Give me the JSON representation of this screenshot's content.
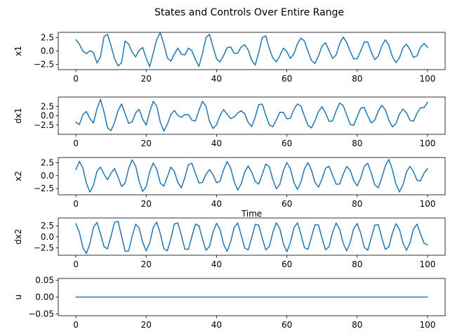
{
  "chart_data": {
    "title": "States and Controls Over Entire Range",
    "x_tick_labels": [
      "0",
      "20",
      "40",
      "60",
      "80",
      "100"
    ],
    "subplots": [
      {
        "type": "line",
        "ylabel": "x1",
        "xlabel": "",
        "xlim": [
          -5,
          105
        ],
        "ylim": [
          -3.5,
          3.5
        ],
        "yticks": [
          2.5,
          0.0,
          -2.5
        ],
        "ytick_labels": [
          "2.5",
          "0.0",
          "−2.5"
        ],
        "color": "#1f77b4",
        "x": [
          0,
          1,
          2,
          3,
          4,
          5,
          6,
          7,
          8,
          9,
          10,
          11,
          12,
          13,
          14,
          15,
          16,
          17,
          18,
          19,
          20,
          21,
          22,
          23,
          24,
          25,
          26,
          27,
          28,
          29,
          30,
          31,
          32,
          33,
          34,
          35,
          36,
          37,
          38,
          39,
          40,
          41,
          42,
          43,
          44,
          45,
          46,
          47,
          48,
          49,
          50,
          51,
          52,
          53,
          54,
          55,
          56,
          57,
          58,
          59,
          60,
          61,
          62,
          63,
          64,
          65,
          66,
          67,
          68,
          69,
          70,
          71,
          72,
          73,
          74,
          75,
          76,
          77,
          78,
          79,
          80,
          81,
          82,
          83,
          84,
          85,
          86,
          87,
          88,
          89,
          90,
          91,
          92,
          93,
          94,
          95,
          96,
          97,
          98,
          99,
          100
        ],
        "y": [
          2.12,
          1.28,
          -0.02,
          -0.5,
          0.05,
          -0.29,
          -2.26,
          -1.09,
          2.67,
          3.14,
          0.98,
          -1.43,
          -2.82,
          -2.18,
          1.88,
          1.33,
          -0.21,
          -1.12,
          0.12,
          0.66,
          -1.38,
          -2.97,
          -0.41,
          2.15,
          3.45,
          1.33,
          -1.27,
          -1.93,
          -0.57,
          0.55,
          -0.61,
          -0.75,
          0.54,
          0.04,
          -1.63,
          -2.9,
          -0.47,
          2.49,
          3.13,
          0.77,
          -1.48,
          -2.05,
          -0.87,
          0.62,
          0.78,
          -0.45,
          -0.41,
          0.76,
          1.16,
          0.18,
          -1.77,
          -2.63,
          -0.26,
          2.53,
          2.84,
          0.47,
          -1.32,
          -2.05,
          -0.92,
          0.52,
          -0.12,
          -1.4,
          -0.53,
          1.33,
          2.42,
          1.86,
          -0.08,
          -1.78,
          -2.36,
          -0.91,
          0.93,
          1.55,
          0.08,
          -1.42,
          -0.74,
          1.37,
          2.62,
          1.62,
          -0.11,
          -1.48,
          -1.46,
          0.02,
          1.66,
          1.66,
          -0.2,
          -1.61,
          -0.96,
          0.95,
          2.1,
          1.06,
          -1.05,
          -2.2,
          -1.3,
          0.59,
          1.28,
          0.24,
          -1.22,
          -0.92,
          0.7,
          1.4,
          0.72
        ]
      },
      {
        "type": "line",
        "ylabel": "dx1",
        "xlabel": "",
        "xlim": [
          -5,
          105
        ],
        "ylim": [
          -5.0,
          5.0
        ],
        "yticks": [
          2.5,
          0.0,
          -2.5
        ],
        "ytick_labels": [
          "2.5",
          "0.0",
          "−2.5"
        ],
        "color": "#1f77b4",
        "x": [
          0,
          1,
          2,
          3,
          4,
          5,
          6,
          7,
          8,
          9,
          10,
          11,
          12,
          13,
          14,
          15,
          16,
          17,
          18,
          19,
          20,
          21,
          22,
          23,
          24,
          25,
          26,
          27,
          28,
          29,
          30,
          31,
          32,
          33,
          34,
          35,
          36,
          37,
          38,
          39,
          40,
          41,
          42,
          43,
          44,
          45,
          46,
          47,
          48,
          49,
          50,
          51,
          52,
          53,
          54,
          55,
          56,
          57,
          58,
          59,
          60,
          61,
          62,
          63,
          64,
          65,
          66,
          67,
          68,
          69,
          70,
          71,
          72,
          73,
          74,
          75,
          76,
          77,
          78,
          79,
          80,
          81,
          82,
          83,
          84,
          85,
          86,
          87,
          88,
          89,
          90,
          91,
          92,
          93,
          94,
          95,
          96,
          97,
          98,
          99,
          100
        ],
        "y": [
          -1.78,
          -2.37,
          0.24,
          1.15,
          -0.76,
          -1.97,
          1.83,
          4.38,
          1.02,
          -3.25,
          -4.01,
          -1.79,
          1.37,
          3.16,
          0.59,
          -2.05,
          -1.66,
          0.76,
          1.68,
          -0.94,
          -2.54,
          1.04,
          3.86,
          2.54,
          -1.72,
          -4.12,
          -2.34,
          0.3,
          1.37,
          0.07,
          -0.46,
          0.31,
          0.28,
          -1.23,
          -1.45,
          1.45,
          3.85,
          2.57,
          -1.55,
          -3.43,
          -2.48,
          0.09,
          1.64,
          0.39,
          -0.79,
          -0.37,
          0.7,
          1.31,
          0.54,
          -1.81,
          -2.91,
          -0.38,
          2.97,
          3.09,
          0.16,
          -2.46,
          -2.96,
          -1.14,
          0.91,
          0.86,
          -0.84,
          -0.68,
          1.7,
          3.16,
          2.54,
          -0.13,
          -2.62,
          -3.28,
          -1.34,
          1.11,
          2.41,
          0.72,
          -1.56,
          -1.38,
          1.26,
          3.37,
          2.73,
          0.24,
          -2.33,
          -2.61,
          -0.25,
          2.01,
          2.21,
          -0.03,
          -1.96,
          -1.19,
          1.31,
          2.75,
          1.56,
          -1.21,
          -3.03,
          -2.14,
          0.4,
          1.77,
          0.79,
          -1.26,
          -1.48,
          0.62,
          2.17,
          2.13,
          3.6
        ]
      },
      {
        "type": "line",
        "ylabel": "x2",
        "xlabel": "Time",
        "xlim": [
          -5,
          105
        ],
        "ylim": [
          -3.7,
          3.5
        ],
        "yticks": [
          2.5,
          0.0,
          -2.5
        ],
        "ytick_labels": [
          "2.5",
          "0.0",
          "−2.5"
        ],
        "color": "#1f77b4",
        "x": [
          0,
          1,
          2,
          3,
          4,
          5,
          6,
          7,
          8,
          9,
          10,
          11,
          12,
          13,
          14,
          15,
          16,
          17,
          18,
          19,
          20,
          21,
          22,
          23,
          24,
          25,
          26,
          27,
          28,
          29,
          30,
          31,
          32,
          33,
          34,
          35,
          36,
          37,
          38,
          39,
          40,
          41,
          42,
          43,
          44,
          45,
          46,
          47,
          48,
          49,
          50,
          51,
          52,
          53,
          54,
          55,
          56,
          57,
          58,
          59,
          60,
          61,
          62,
          63,
          64,
          65,
          66,
          67,
          68,
          69,
          70,
          71,
          72,
          73,
          74,
          75,
          76,
          77,
          78,
          79,
          80,
          81,
          82,
          83,
          84,
          85,
          86,
          87,
          88,
          89,
          90,
          91,
          92,
          93,
          94,
          95,
          96,
          97,
          98,
          99,
          100
        ],
        "y": [
          1.12,
          2.77,
          1.44,
          -1.47,
          -3.18,
          -1.88,
          0.83,
          1.64,
          0.28,
          -0.8,
          0.47,
          1.38,
          -0.28,
          -2.11,
          -1.45,
          1.37,
          3.05,
          1.85,
          -1.1,
          -3.05,
          -2.12,
          0.75,
          2.44,
          1.24,
          -1.42,
          -2.05,
          -0.25,
          1.65,
          0.8,
          -1.32,
          -2.37,
          -0.34,
          2.1,
          2.4,
          0.44,
          -1.41,
          -1.32,
          0.27,
          1.18,
          0.2,
          -1.37,
          -1.08,
          1.1,
          2.73,
          1.49,
          -1.12,
          -2.77,
          -1.65,
          0.7,
          1.88,
          0.72,
          -1.14,
          -1.62,
          0.25,
          2.25,
          1.74,
          -0.76,
          -2.53,
          -1.69,
          0.98,
          2.51,
          1.31,
          -1.33,
          -2.67,
          -1.25,
          1.32,
          2.51,
          1.03,
          -1.31,
          -2.23,
          -0.65,
          1.45,
          1.79,
          0.07,
          -1.64,
          -1.63,
          0.23,
          1.76,
          1.05,
          -0.97,
          -1.98,
          -0.46,
          1.79,
          2.38,
          0.46,
          -1.79,
          -2.36,
          -0.37,
          1.9,
          3.12,
          1.15,
          -1.61,
          -3.15,
          -1.79,
          0.69,
          1.79,
          0.75,
          -0.88,
          -1.02,
          0.48,
          1.36
        ]
      },
      {
        "type": "line",
        "ylabel": "dx2",
        "xlabel": "",
        "xlim": [
          -5,
          105
        ],
        "ylim": [
          -4.2,
          4.3
        ],
        "yticks": [
          2.5,
          0.0,
          -2.5
        ],
        "ytick_labels": [
          "2.5",
          "0.0",
          "−2.5"
        ],
        "color": "#1f77b4",
        "x": [
          0,
          1,
          2,
          3,
          4,
          5,
          6,
          7,
          8,
          9,
          10,
          11,
          12,
          13,
          14,
          15,
          16,
          17,
          18,
          19,
          20,
          21,
          22,
          23,
          24,
          25,
          26,
          27,
          28,
          29,
          30,
          31,
          32,
          33,
          34,
          35,
          36,
          37,
          38,
          39,
          40,
          41,
          42,
          43,
          44,
          45,
          46,
          47,
          48,
          49,
          50,
          51,
          52,
          53,
          54,
          55,
          56,
          57,
          58,
          59,
          60,
          61,
          62,
          63,
          64,
          65,
          66,
          67,
          68,
          69,
          70,
          71,
          72,
          73,
          74,
          75,
          76,
          77,
          78,
          79,
          80,
          81,
          82,
          83,
          84,
          85,
          86,
          87,
          88,
          89,
          90,
          91,
          92,
          93,
          94,
          95,
          96,
          97,
          98,
          99,
          100
        ],
        "y": [
          2.98,
          1.03,
          -2.49,
          -3.79,
          -1.51,
          2.12,
          3.27,
          0.73,
          -2.21,
          -2.76,
          0.15,
          3.33,
          3.52,
          0.15,
          -3.29,
          -3.24,
          0.12,
          2.89,
          2.0,
          -1.26,
          -3.21,
          -1.37,
          2.09,
          3.36,
          0.78,
          -2.69,
          -3.2,
          -0.48,
          2.94,
          3.17,
          0.33,
          -2.79,
          -2.86,
          0.11,
          2.93,
          2.51,
          -0.47,
          -3.08,
          -2.17,
          1.03,
          3.1,
          1.68,
          -1.66,
          -3.31,
          -1.18,
          2.11,
          3.17,
          0.44,
          -2.53,
          -2.99,
          -0.23,
          2.86,
          2.64,
          -0.33,
          -2.98,
          -2.22,
          0.99,
          3.21,
          1.8,
          -1.54,
          -3.39,
          -1.29,
          2.09,
          3.19,
          0.55,
          -2.49,
          -2.85,
          -0.02,
          2.79,
          2.69,
          -0.35,
          -2.96,
          -2.23,
          1.01,
          3.15,
          1.76,
          -1.42,
          -3.22,
          -1.33,
          1.88,
          3.03,
          0.82,
          -2.39,
          -3.04,
          -0.22,
          2.68,
          2.77,
          -0.24,
          -2.87,
          -2.28,
          0.83,
          2.99,
          1.74,
          -1.37,
          -3.09,
          -1.41,
          1.8,
          2.9,
          0.62,
          -1.44,
          -1.8
        ]
      },
      {
        "type": "line",
        "ylabel": "u",
        "xlabel": "",
        "xlim": [
          -5,
          105
        ],
        "ylim": [
          -0.055,
          0.055
        ],
        "yticks": [
          0.05,
          0.0,
          -0.05
        ],
        "ytick_labels": [
          "0.05",
          "0.00",
          "−0.05"
        ],
        "color": "#1f77b4",
        "x": [
          0,
          100
        ],
        "y": [
          0,
          0
        ]
      }
    ]
  }
}
